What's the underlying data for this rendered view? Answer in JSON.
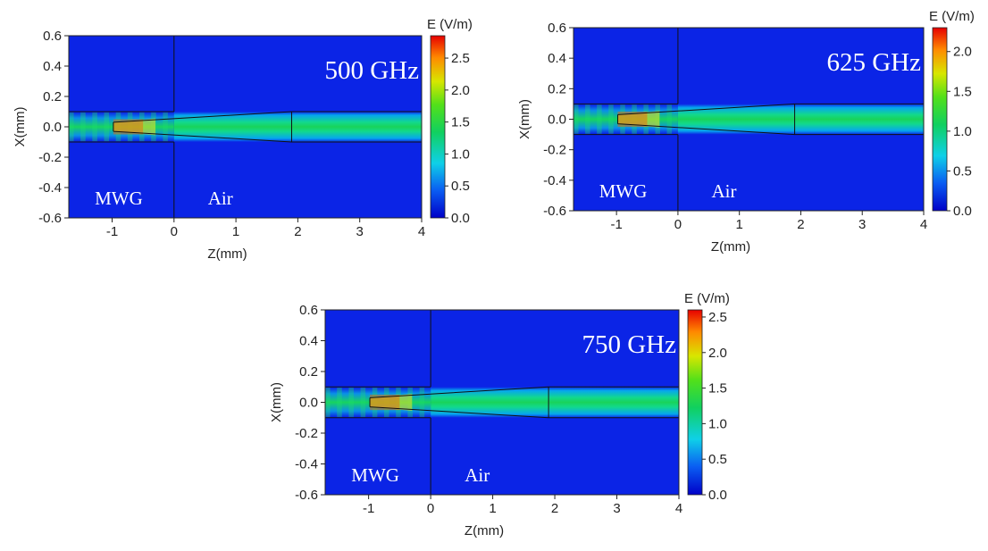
{
  "chart_data": [
    {
      "type": "heatmap",
      "annotation": "500 GHz",
      "region_labels": [
        "MWG",
        "Air"
      ],
      "xlabel": "Z(mm)",
      "ylabel": "X(mm)",
      "xlim": [
        -1.7,
        4
      ],
      "ylim": [
        -0.6,
        0.6
      ],
      "xticks": [
        "-1",
        "0",
        "1",
        "2",
        "3",
        "4"
      ],
      "yticks": [
        "0.6",
        "0.4",
        "0.2",
        "0.0",
        "-0.2",
        "-0.4",
        "-0.6"
      ],
      "colorbar": {
        "title": "E (V/m)",
        "min": 0.0,
        "max": 2.85,
        "ticks": [
          "2.5",
          "2.0",
          "1.5",
          "1.0",
          "0.5",
          "0.0"
        ]
      }
    },
    {
      "type": "heatmap",
      "annotation": "625 GHz",
      "region_labels": [
        "MWG",
        "Air"
      ],
      "xlabel": "Z(mm)",
      "ylabel": "X(mm)",
      "xlim": [
        -1.7,
        4
      ],
      "ylim": [
        -0.6,
        0.6
      ],
      "xticks": [
        "-1",
        "0",
        "1",
        "2",
        "3",
        "4"
      ],
      "yticks": [
        "0.6",
        "0.4",
        "0.2",
        "0.0",
        "-0.2",
        "-0.4",
        "-0.6"
      ],
      "colorbar": {
        "title": "E (V/m)",
        "min": 0.0,
        "max": 2.3,
        "ticks": [
          "2.0",
          "1.5",
          "1.0",
          "0.5",
          "0.0"
        ]
      }
    },
    {
      "type": "heatmap",
      "annotation": "750 GHz",
      "region_labels": [
        "MWG",
        "Air"
      ],
      "xlabel": "Z(mm)",
      "ylabel": "X(mm)",
      "xlim": [
        -1.7,
        4
      ],
      "ylim": [
        -0.6,
        0.6
      ],
      "xticks": [
        "-1",
        "0",
        "1",
        "2",
        "3",
        "4"
      ],
      "yticks": [
        "0.6",
        "0.4",
        "0.2",
        "0.0",
        "-0.2",
        "-0.4",
        "-0.6"
      ],
      "colorbar": {
        "title": "E (V/m)",
        "min": 0.0,
        "max": 2.6,
        "ticks": [
          "2.5",
          "2.0",
          "1.5",
          "1.0",
          "0.5",
          "0.0"
        ]
      }
    }
  ]
}
